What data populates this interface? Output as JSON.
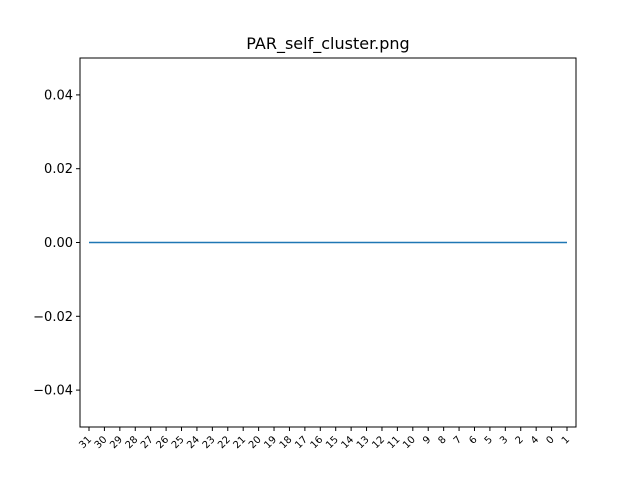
{
  "chart_data": {
    "type": "line",
    "title": "PAR_self_cluster.png",
    "xlabel": "",
    "ylabel": "",
    "categories": [
      "31",
      "30",
      "29",
      "28",
      "27",
      "26",
      "25",
      "24",
      "23",
      "22",
      "21",
      "20",
      "19",
      "18",
      "17",
      "16",
      "15",
      "14",
      "13",
      "12",
      "11",
      "10",
      "9",
      "8",
      "7",
      "6",
      "5",
      "3",
      "2",
      "4",
      "0",
      "1"
    ],
    "series": [
      {
        "values": [
          0,
          0,
          0,
          0,
          0,
          0,
          0,
          0,
          0,
          0,
          0,
          0,
          0,
          0,
          0,
          0,
          0,
          0,
          0,
          0,
          0,
          0,
          0,
          0,
          0,
          0,
          0,
          0,
          0,
          0,
          0,
          0
        ]
      }
    ],
    "ylim": [
      -0.05,
      0.05
    ],
    "yticks": [
      -0.04,
      -0.02,
      0.0,
      0.02,
      0.04
    ],
    "ytick_labels": [
      "−0.04",
      "−0.02",
      "0.00",
      "0.02",
      "0.04"
    ],
    "grid": false,
    "colors": {
      "line": "#1f77b4",
      "axes": "#000000",
      "background": "#ffffff"
    }
  }
}
